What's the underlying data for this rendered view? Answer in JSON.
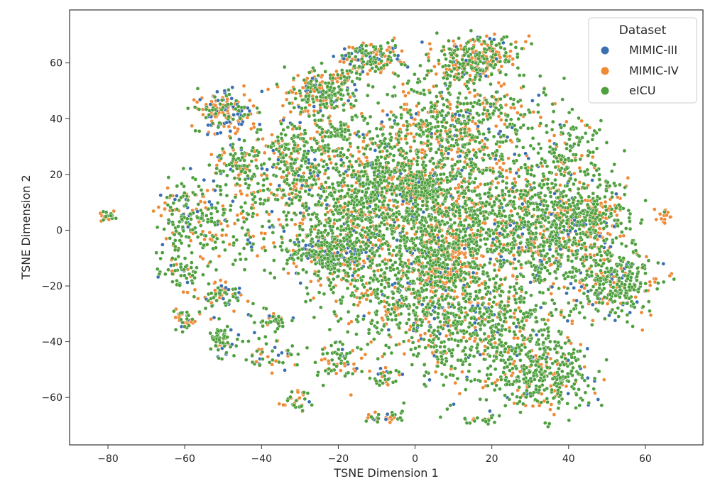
{
  "chart_data": {
    "type": "scatter",
    "xlabel": "TSNE Dimension 1",
    "ylabel": "TSNE Dimension 2",
    "xlim": [
      -90,
      75
    ],
    "ylim": [
      -77,
      79
    ],
    "xticks": [
      -80,
      -60,
      -40,
      -20,
      0,
      20,
      40,
      60
    ],
    "yticks": [
      -60,
      -40,
      -20,
      0,
      20,
      40,
      60
    ],
    "xtick_labels": [
      "−80",
      "−60",
      "−40",
      "−20",
      "0",
      "20",
      "40",
      "60"
    ],
    "ytick_labels": [
      "−60",
      "−40",
      "−20",
      "0",
      "20",
      "40",
      "60"
    ],
    "grid": false,
    "legend": {
      "title": "Dataset",
      "placement": "top-right",
      "entries": [
        "MIMIC-III",
        "MIMIC-IV",
        "eICU"
      ]
    },
    "series": [
      {
        "name": "MIMIC-III",
        "color": "#3a6fb0"
      },
      {
        "name": "MIMIC-IV",
        "color": "#ee8a36"
      },
      {
        "name": "eICU",
        "color": "#4e9f3d"
      }
    ],
    "clusters": [
      {
        "x": -80,
        "y": 5,
        "sx": 1.2,
        "sy": 1.2,
        "n": 20,
        "mix": [
          0.05,
          0.55,
          0.4
        ]
      },
      {
        "x": -60,
        "y": 5,
        "sx": 4,
        "sy": 8,
        "n": 160,
        "mix": [
          0.1,
          0.3,
          0.6
        ]
      },
      {
        "x": -60,
        "y": -15,
        "sx": 3,
        "sy": 4,
        "n": 60,
        "mix": [
          0.05,
          0.2,
          0.75
        ]
      },
      {
        "x": -60,
        "y": -32,
        "sx": 2,
        "sy": 2,
        "n": 40,
        "mix": [
          0.1,
          0.4,
          0.5
        ]
      },
      {
        "x": -50,
        "y": -23,
        "sx": 3,
        "sy": 3,
        "n": 70,
        "mix": [
          0.2,
          0.45,
          0.35
        ]
      },
      {
        "x": -50,
        "y": -40,
        "sx": 2,
        "sy": 3,
        "n": 60,
        "mix": [
          0.1,
          0.2,
          0.7
        ]
      },
      {
        "x": -49,
        "y": 42,
        "sx": 4,
        "sy": 4,
        "n": 170,
        "mix": [
          0.3,
          0.4,
          0.3
        ]
      },
      {
        "x": -46,
        "y": 24,
        "sx": 3,
        "sy": 4,
        "n": 90,
        "mix": [
          0.1,
          0.3,
          0.6
        ]
      },
      {
        "x": -46,
        "y": 5,
        "sx": 6,
        "sy": 8,
        "n": 160,
        "mix": [
          0.07,
          0.25,
          0.68
        ]
      },
      {
        "x": -38,
        "y": -32,
        "sx": 3,
        "sy": 2,
        "n": 40,
        "mix": [
          0.05,
          0.25,
          0.7
        ]
      },
      {
        "x": -38,
        "y": -45,
        "sx": 4,
        "sy": 3,
        "n": 50,
        "mix": [
          0.2,
          0.4,
          0.4
        ]
      },
      {
        "x": -31,
        "y": -61,
        "sx": 2,
        "sy": 2,
        "n": 30,
        "mix": [
          0.1,
          0.5,
          0.4
        ]
      },
      {
        "x": -33,
        "y": 27,
        "sx": 5,
        "sy": 8,
        "n": 200,
        "mix": [
          0.1,
          0.3,
          0.6
        ]
      },
      {
        "x": -24,
        "y": 50,
        "sx": 5,
        "sy": 4,
        "n": 230,
        "mix": [
          0.08,
          0.3,
          0.62
        ]
      },
      {
        "x": -20,
        "y": 35,
        "sx": 2,
        "sy": 1.5,
        "n": 40,
        "mix": [
          0,
          0.05,
          0.95
        ]
      },
      {
        "x": -12,
        "y": 62,
        "sx": 4,
        "sy": 3,
        "n": 160,
        "mix": [
          0.1,
          0.4,
          0.5
        ]
      },
      {
        "x": -18,
        "y": 10,
        "sx": 10,
        "sy": 15,
        "n": 800,
        "mix": [
          0.07,
          0.25,
          0.68
        ]
      },
      {
        "x": -22,
        "y": -8,
        "sx": 6,
        "sy": 4,
        "n": 300,
        "mix": [
          0.2,
          0.2,
          0.6
        ]
      },
      {
        "x": -20,
        "y": -48,
        "sx": 3,
        "sy": 4,
        "n": 70,
        "mix": [
          0.08,
          0.2,
          0.72
        ]
      },
      {
        "x": -8,
        "y": -52,
        "sx": 2,
        "sy": 2,
        "n": 30,
        "mix": [
          0.1,
          0.3,
          0.6
        ]
      },
      {
        "x": -8,
        "y": -67,
        "sx": 3,
        "sy": 1,
        "n": 30,
        "mix": [
          0.1,
          0.5,
          0.4
        ]
      },
      {
        "x": -5,
        "y": 20,
        "sx": 8,
        "sy": 10,
        "n": 400,
        "mix": [
          0.06,
          0.3,
          0.64
        ]
      },
      {
        "x": 0,
        "y": -20,
        "sx": 12,
        "sy": 12,
        "n": 700,
        "mix": [
          0.05,
          0.25,
          0.7
        ]
      },
      {
        "x": 2,
        "y": 15,
        "sx": 3,
        "sy": 3,
        "n": 120,
        "mix": [
          0.1,
          0.3,
          0.6
        ]
      },
      {
        "x": 8,
        "y": -12,
        "sx": 4,
        "sy": 6,
        "n": 160,
        "mix": [
          0.05,
          0.65,
          0.3
        ]
      },
      {
        "x": 16,
        "y": 62,
        "sx": 5,
        "sy": 4,
        "n": 280,
        "mix": [
          0.05,
          0.45,
          0.5
        ]
      },
      {
        "x": 12,
        "y": 35,
        "sx": 10,
        "sy": 12,
        "n": 700,
        "mix": [
          0.06,
          0.35,
          0.59
        ]
      },
      {
        "x": 15,
        "y": 3,
        "sx": 15,
        "sy": 10,
        "n": 900,
        "mix": [
          0.07,
          0.25,
          0.68
        ]
      },
      {
        "x": 20,
        "y": -35,
        "sx": 12,
        "sy": 12,
        "n": 700,
        "mix": [
          0.05,
          0.2,
          0.75
        ]
      },
      {
        "x": 18,
        "y": -68,
        "sx": 2,
        "sy": 1,
        "n": 20,
        "mix": [
          0.05,
          0.15,
          0.8
        ]
      },
      {
        "x": 35,
        "y": 0,
        "sx": 8,
        "sy": 10,
        "n": 500,
        "mix": [
          0.1,
          0.3,
          0.6
        ]
      },
      {
        "x": 34,
        "y": -53,
        "sx": 6,
        "sy": 6,
        "n": 280,
        "mix": [
          0.05,
          0.2,
          0.75
        ]
      },
      {
        "x": 40,
        "y": 30,
        "sx": 5,
        "sy": 8,
        "n": 150,
        "mix": [
          0.05,
          0.15,
          0.8
        ]
      },
      {
        "x": 47,
        "y": 5,
        "sx": 5,
        "sy": 7,
        "n": 200,
        "mix": [
          0.05,
          0.35,
          0.6
        ]
      },
      {
        "x": 52,
        "y": -18,
        "sx": 6,
        "sy": 6,
        "n": 330,
        "mix": [
          0.08,
          0.2,
          0.72
        ]
      },
      {
        "x": 65,
        "y": 5,
        "sx": 1.2,
        "sy": 1.5,
        "n": 15,
        "mix": [
          0,
          0.9,
          0.1
        ]
      }
    ],
    "seed": 12345
  }
}
